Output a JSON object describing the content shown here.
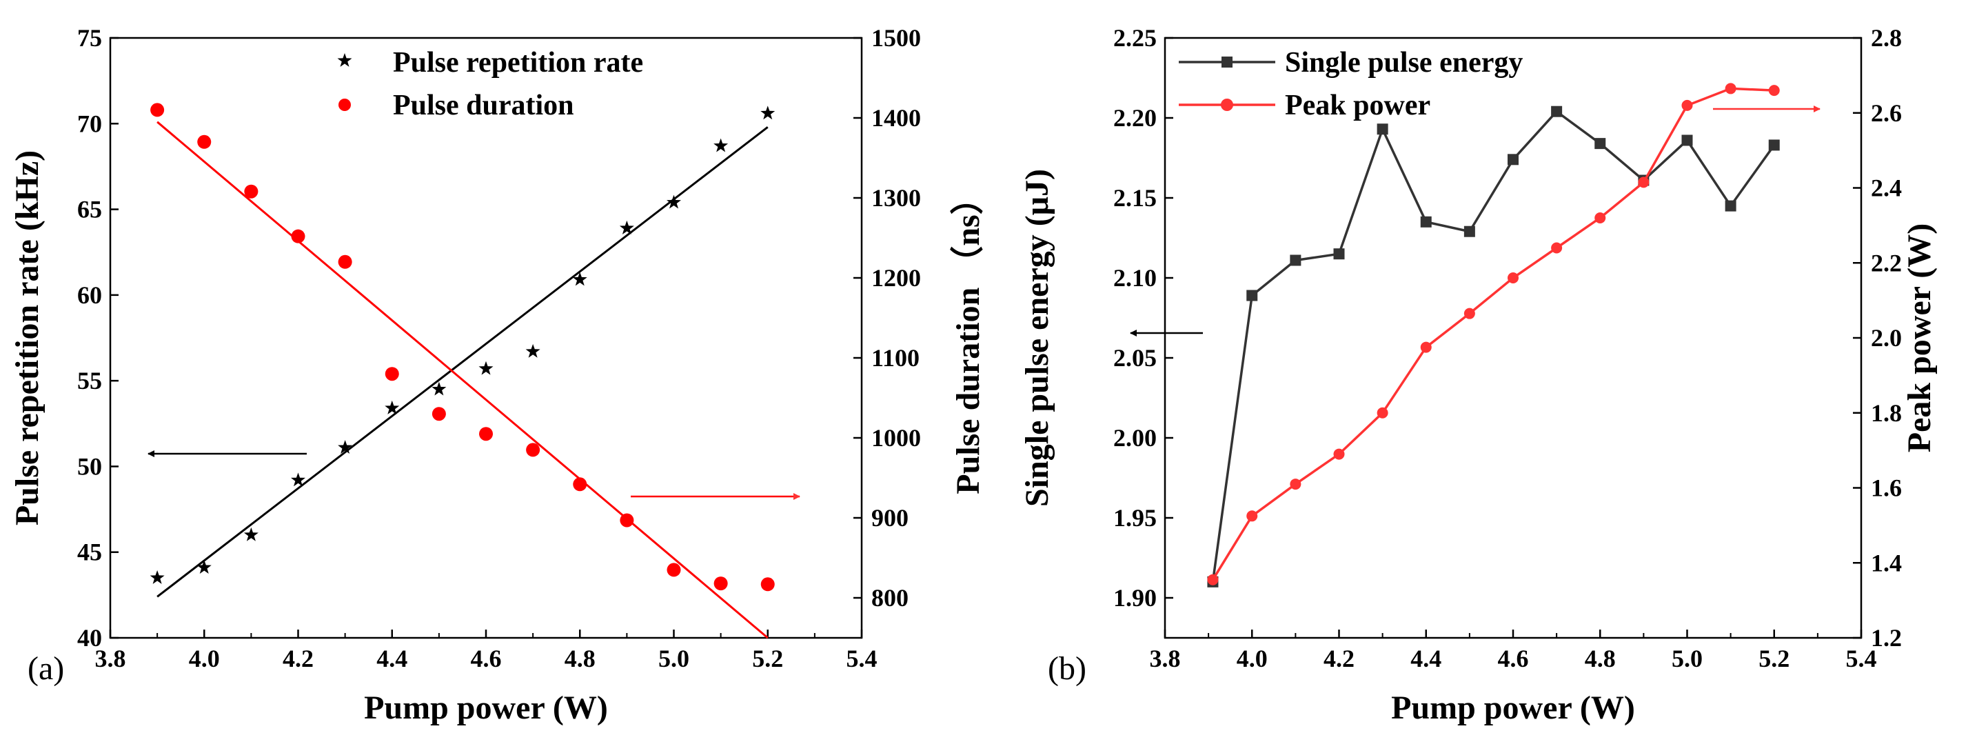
{
  "chart_data": [
    {
      "type": "scatter",
      "panel_label": "(a)",
      "xlabel": "Pump power  (W)",
      "ylabel": "Pulse repetition rate  (kHz)",
      "y2label": "Pulse duration （ns）",
      "xlim": [
        3.8,
        5.4
      ],
      "ylim": [
        40,
        75
      ],
      "y2lim": [
        750,
        1500
      ],
      "xticks": [
        "3.8",
        "4.0",
        "4.2",
        "4.4",
        "4.6",
        "4.8",
        "5.0",
        "5.2",
        "5.4"
      ],
      "yticks": [
        "40",
        "45",
        "50",
        "55",
        "60",
        "65",
        "70",
        "75"
      ],
      "y2ticks": [
        "800",
        "900",
        "1000",
        "1100",
        "1200",
        "1300",
        "1400",
        "1500"
      ],
      "legend_position": "top",
      "series": [
        {
          "name": "Pulse repetition rate",
          "axis": "left",
          "marker": "star",
          "color": "#000000",
          "x": [
            3.9,
            4.0,
            4.1,
            4.2,
            4.3,
            4.4,
            4.5,
            4.6,
            4.7,
            4.8,
            4.9,
            5.0,
            5.1,
            5.2
          ],
          "y": [
            43.5,
            44.1,
            46.0,
            49.2,
            51.1,
            53.4,
            54.5,
            55.7,
            56.7,
            60.9,
            63.9,
            65.4,
            68.7,
            70.6
          ],
          "fit": {
            "x": [
              3.9,
              5.2
            ],
            "y": [
              42.4,
              69.8
            ]
          }
        },
        {
          "name": "Pulse duration",
          "axis": "right",
          "marker": "circle",
          "color": "#ff0000",
          "x": [
            3.9,
            4.0,
            4.1,
            4.2,
            4.3,
            4.4,
            4.5,
            4.6,
            4.7,
            4.8,
            4.9,
            5.0,
            5.1,
            5.2
          ],
          "y": [
            1410,
            1370,
            1308,
            1252,
            1220,
            1080,
            1030,
            1005,
            985,
            942,
            897,
            835,
            818,
            817
          ],
          "fit": {
            "x": [
              3.9,
              5.2
            ],
            "y": [
              1395,
              750
            ]
          }
        }
      ],
      "arrows": [
        {
          "points_to": "left axis",
          "color": "#000000"
        },
        {
          "points_to": "right axis",
          "color": "#ff0000"
        }
      ]
    },
    {
      "type": "line",
      "panel_label": "(b)",
      "xlabel": "Pump power (W)",
      "ylabel": "Single pulse energy  (μJ)",
      "y2label": "Peak power  (W)",
      "xlim": [
        3.8,
        5.4
      ],
      "ylim": [
        1.875,
        2.25
      ],
      "y2lim": [
        1.2,
        2.8
      ],
      "xticks": [
        "3.8",
        "4.0",
        "4.2",
        "4.4",
        "4.6",
        "4.8",
        "5.0",
        "5.2",
        "5.4"
      ],
      "yticks": [
        "1.90",
        "1.95",
        "2.00",
        "2.05",
        "2.10",
        "2.15",
        "2.20",
        "2.25"
      ],
      "y2ticks": [
        "1.2",
        "1.4",
        "1.6",
        "1.8",
        "2.0",
        "2.2",
        "2.4",
        "2.6",
        "2.8"
      ],
      "legend_position": "top-left",
      "series": [
        {
          "name": "Single pulse energy",
          "axis": "left",
          "marker": "square",
          "color": "#333333",
          "x": [
            3.91,
            4.0,
            4.1,
            4.2,
            4.3,
            4.4,
            4.5,
            4.6,
            4.7,
            4.8,
            4.9,
            5.0,
            5.1,
            5.2
          ],
          "y": [
            1.91,
            2.089,
            2.111,
            2.115,
            2.193,
            2.135,
            2.129,
            2.174,
            2.204,
            2.184,
            2.161,
            2.186,
            2.145,
            2.183
          ]
        },
        {
          "name": "Peak power",
          "axis": "right",
          "marker": "circle",
          "color": "#ff3333",
          "x": [
            3.91,
            4.0,
            4.1,
            4.2,
            4.3,
            4.4,
            4.5,
            4.6,
            4.7,
            4.8,
            4.9,
            5.0,
            5.1,
            5.2
          ],
          "y": [
            1.355,
            1.525,
            1.61,
            1.69,
            1.8,
            1.975,
            2.065,
            2.16,
            2.24,
            2.32,
            2.415,
            2.62,
            2.665,
            2.66
          ]
        }
      ],
      "arrows": [
        {
          "points_to": "left axis",
          "color": "#000000"
        },
        {
          "points_to": "right axis",
          "color": "#ff3333"
        }
      ]
    }
  ]
}
